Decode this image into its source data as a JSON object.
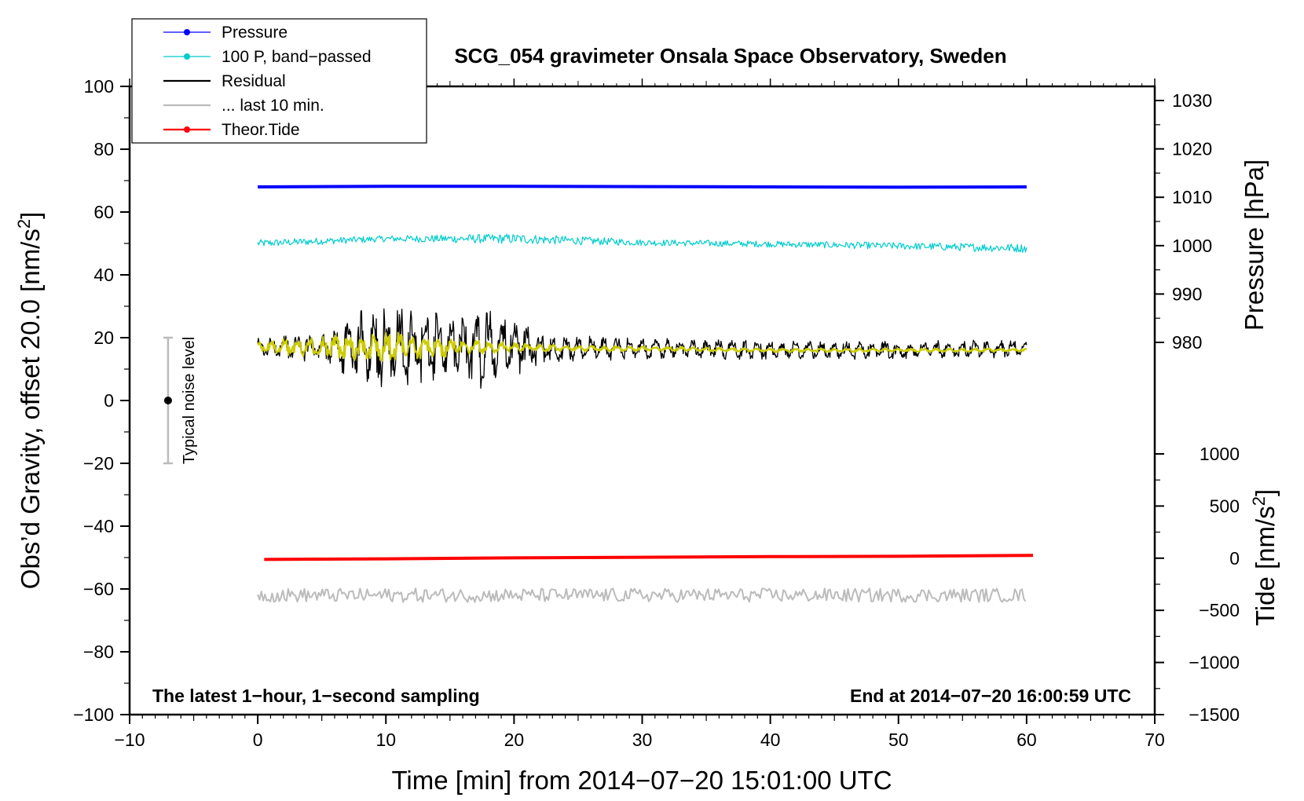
{
  "chart_data": {
    "type": "line",
    "title": "SCG_054 gravimeter Onsala Space Observatory, Sweden",
    "xlabel": "Time [min] from 2014−07−20 15:01:00 UTC",
    "ylabel_left": "Obs’d Gravity, offset 20.0 [nm/s",
    "ylabel_left_sup": "2",
    "ylabel_left_tail": "]",
    "ylabel_right_pressure": "Pressure [hPa]",
    "ylabel_right_tide": "Tide [nm/s",
    "ylabel_right_tide_sup": "2",
    "ylabel_right_tide_tail": "]",
    "xlim": [
      -10,
      70
    ],
    "ylim": [
      -100,
      100
    ],
    "x_ticks": [
      -10,
      0,
      10,
      20,
      30,
      40,
      50,
      60,
      70
    ],
    "x_tick_labels": [
      "−10",
      "0",
      "10",
      "20",
      "30",
      "40",
      "50",
      "60",
      "70"
    ],
    "y_ticks": [
      -100,
      -80,
      -60,
      -40,
      -20,
      0,
      20,
      40,
      60,
      80,
      100
    ],
    "y_tick_labels": [
      "−100",
      "−80",
      "−60",
      "−40",
      "−20",
      "0",
      "20",
      "40",
      "60",
      "80",
      "100"
    ],
    "pressure_axis": {
      "ticks": [
        980,
        990,
        1000,
        1010,
        1020,
        1030
      ],
      "tick_labels": [
        "980",
        "990",
        "1000",
        "1010",
        "1020",
        "1030"
      ],
      "mapping": {
        "value_a": 980,
        "gravity_a": 18.5,
        "value_b": 1030,
        "gravity_b": 95.5
      }
    },
    "tide_axis": {
      "ticks": [
        -1500,
        -1000,
        -500,
        0,
        500,
        1000
      ],
      "tick_labels": [
        "−1500",
        "−1000",
        "−500",
        "0",
        "500",
        "1000"
      ],
      "mapping": {
        "value_a": -1500,
        "gravity_a": -100,
        "value_b": 1000,
        "gravity_b": -17
      }
    },
    "legend_position": "top-left",
    "legend": [
      {
        "label": "Pressure",
        "color": "#0000ff",
        "marker": true,
        "series": "pressure"
      },
      {
        "label": "100 P, band−passed",
        "color": "#00cccc",
        "marker": true,
        "series": "pressure_bp"
      },
      {
        "label": "Residual",
        "color": "#000000",
        "marker": false,
        "series": "residual"
      },
      {
        "label": "... last 10 min.",
        "color": "#bbbbbb",
        "marker": false,
        "series": "last10"
      },
      {
        "label": "Theor.Tide",
        "color": "#ff0000",
        "marker": true,
        "series": "tide"
      }
    ],
    "annotations": {
      "bottom_left": "The latest 1−hour, 1−second sampling",
      "bottom_right": "End at 2014−07−20 16:00:59 UTC",
      "noise_label": "Typical noise level"
    },
    "noise_bar": {
      "x": -7,
      "center": 0,
      "low": -20,
      "high": 20
    },
    "series": [
      {
        "name": "Pressure",
        "key": "pressure",
        "color": "#0000ff",
        "width": 4,
        "x": [
          0,
          10,
          20,
          30,
          40,
          50,
          60
        ],
        "y": [
          68.0,
          68.2,
          68.2,
          68.1,
          68.0,
          67.9,
          68.0
        ]
      },
      {
        "name": "100 P, band-passed",
        "key": "pressure_bp",
        "color": "#00cccc",
        "width": 1.2,
        "kind": "noisy",
        "x": [
          0,
          10,
          20,
          30,
          40,
          50,
          60
        ],
        "y": [
          50,
          51.5,
          51.5,
          50.3,
          49.8,
          49.2,
          48.5
        ],
        "amplitude": [
          1.2,
          1.0,
          1.6,
          1.0,
          1.0,
          1.1,
          1.4
        ]
      },
      {
        "name": "Residual",
        "key": "residual",
        "color": "#000000",
        "width": 1.3,
        "kind": "noisy",
        "x": [
          0,
          5,
          8,
          10,
          12,
          15,
          18,
          20,
          22,
          30,
          40,
          50,
          60
        ],
        "y": [
          17,
          17,
          17,
          17,
          17,
          17,
          17,
          17,
          16.5,
          16.5,
          16,
          16,
          16.5
        ],
        "amplitude": [
          3,
          5,
          12,
          14,
          13,
          10,
          14,
          10,
          5,
          3.5,
          3,
          3,
          3
        ]
      },
      {
        "name": "Smoothed residual",
        "key": "smooth",
        "color": "#cccc00",
        "width": 2.2,
        "kind": "noisy",
        "x": [
          0,
          5,
          10,
          15,
          20,
          25,
          30,
          40,
          50,
          60
        ],
        "y": [
          17,
          17,
          17,
          17,
          17,
          16.5,
          16.5,
          16,
          16,
          16
        ],
        "amplitude": [
          2,
          3.5,
          5,
          3,
          1.5,
          1,
          0.8,
          0.6,
          0.6,
          0.6
        ]
      },
      {
        "name": "... last 10 min.",
        "key": "last10",
        "color": "#bbbbbb",
        "width": 2,
        "kind": "noisy",
        "x": [
          0,
          30,
          60
        ],
        "y": [
          -62,
          -62,
          -62
        ],
        "amplitude": [
          2.2,
          2.2,
          2.2
        ]
      },
      {
        "name": "Theor.Tide",
        "key": "tide",
        "color": "#ff0000",
        "width": 4,
        "x": [
          0.5,
          10,
          20,
          30,
          40,
          50,
          60.5
        ],
        "y": [
          -50.6,
          -50.4,
          -50.1,
          -49.9,
          -49.7,
          -49.6,
          -49.3
        ]
      }
    ]
  }
}
